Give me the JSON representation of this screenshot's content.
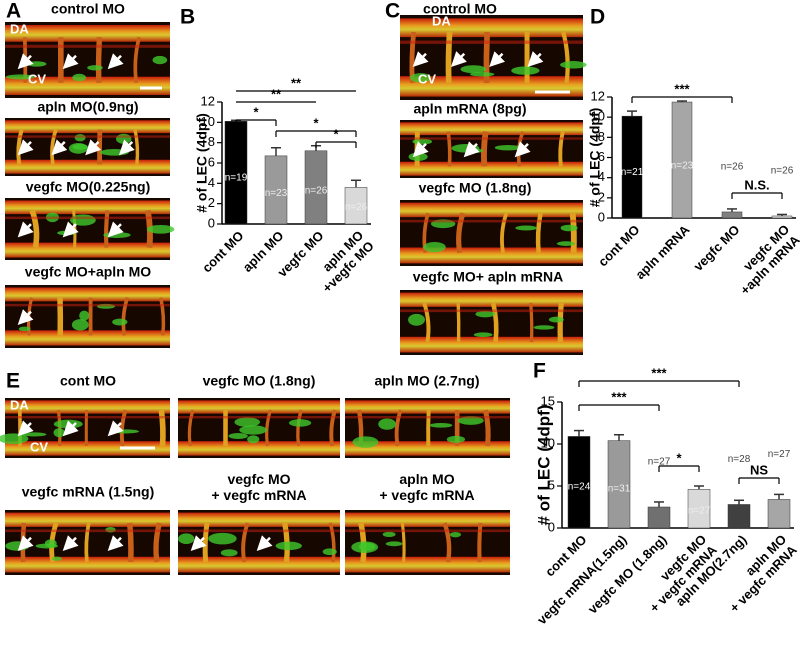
{
  "panel_labels": [
    "A",
    "B",
    "C",
    "D",
    "E",
    "F"
  ],
  "image_groups": {
    "A": {
      "captions": [
        "control MO",
        "apln MO(0.9ng)",
        "vegfc MO(0.225ng)",
        "vegfc  MO+apln MO"
      ],
      "vessel_labels": [
        "DA",
        "CV"
      ]
    },
    "C": {
      "captions": [
        "control MO",
        "apln mRNA (8pg)",
        "vegfc MO (1.8ng)",
        "vegfc MO+ apln mRNA"
      ],
      "vessel_labels": [
        "DA",
        "CV"
      ]
    },
    "E": {
      "captions": [
        "cont MO",
        "vegfc MO (1.8ng)",
        "apln MO (2.7ng)",
        "vegfc mRNA (1.5ng)",
        "vegfc MO\n+ vegfc mRNA",
        "apln MO\n+ vegfc mRNA"
      ],
      "vessel_labels": [
        "DA",
        "CV"
      ]
    }
  },
  "chart_data": [
    {
      "type": "bar",
      "ylabel": "# of LEC (4dpf)",
      "categories": [
        "cont MO",
        "apln MO",
        "vegfc MO",
        "apln MO\n+vegfc MO"
      ],
      "values": [
        10.1,
        6.7,
        7.2,
        3.6
      ],
      "errors": [
        0.1,
        0.8,
        0.5,
        0.7
      ],
      "colors": [
        "#000000",
        "#9a9a9a",
        "#808080",
        "#d9d9d9"
      ],
      "n_labels": [
        "n=19",
        "n=23",
        "n=26",
        "n=26"
      ],
      "significance": [
        "**",
        "**",
        "*",
        "*",
        "*"
      ],
      "ylim": [
        0,
        12
      ],
      "yticks": [
        0,
        2,
        4,
        6,
        8,
        10,
        12
      ]
    },
    {
      "type": "bar",
      "ylabel": "# of LEC (4dpf)",
      "categories": [
        "cont MO",
        "apln mRNA",
        "vegfc MO",
        "vegfc  MO\n+apln mRNA"
      ],
      "values": [
        10.1,
        11.5,
        0.6,
        0.2
      ],
      "errors": [
        0.5,
        0.1,
        0.3,
        0.15
      ],
      "colors": [
        "#000000",
        "#a6a6a6",
        "#808080",
        "#d9d9d9"
      ],
      "n_labels": [
        "n=21",
        "n=23",
        "n=26",
        "n=26"
      ],
      "significance": [
        "***",
        "N.S."
      ],
      "ylim": [
        0,
        12
      ],
      "yticks": [
        0,
        2,
        4,
        6,
        8,
        10,
        12
      ]
    },
    {
      "type": "bar",
      "ylabel": "# of LEC (4dpf)",
      "categories": [
        "cont MO",
        "vegfc mRNA(1.5ng)",
        "vegfc MO (1.8ng)",
        "vegfc MO\n+ vegfc mRNA",
        "apln MO(2.7ng)",
        "apln MO\n+ vegfc mRNA"
      ],
      "values": [
        10.9,
        10.4,
        2.5,
        4.6,
        2.8,
        3.4
      ],
      "errors": [
        0.7,
        0.7,
        0.6,
        0.4,
        0.5,
        0.6
      ],
      "colors": [
        "#000000",
        "#9a9a9a",
        "#707070",
        "#d9d9d9",
        "#404040",
        "#a6a6a6"
      ],
      "n_labels": [
        "n=24",
        "n=31",
        "n=27",
        "n=27",
        "n=28",
        "n=27"
      ],
      "significance": [
        "***",
        "***",
        "*",
        "NS"
      ],
      "ylim": [
        0,
        15
      ],
      "yticks": [
        0,
        5,
        10,
        15
      ]
    }
  ]
}
